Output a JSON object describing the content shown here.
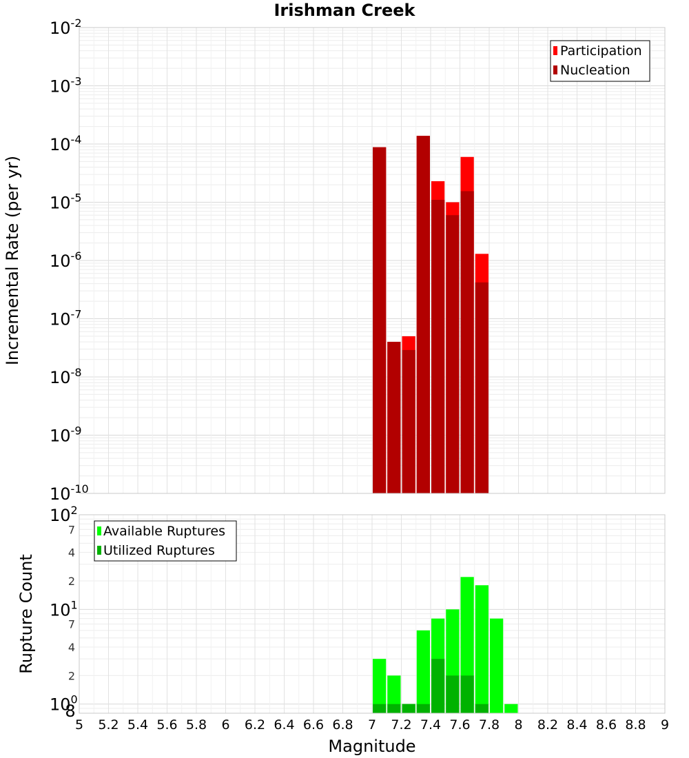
{
  "chart_data": [
    {
      "type": "bar",
      "title": "Irishman Creek",
      "xlabel": "",
      "ylabel": "Incremental Rate (per yr)",
      "xlim": [
        5,
        9
      ],
      "ylim": [
        1e-10,
        0.01
      ],
      "yscale": "log",
      "grid": true,
      "legend_position": "top-right",
      "y_ticks": [
        "10-2",
        "10-3",
        "10-4",
        "10-5",
        "10-6",
        "10-7",
        "10-8",
        "10-9",
        "10-10"
      ],
      "x": [
        7.05,
        7.15,
        7.25,
        7.35,
        7.45,
        7.55,
        7.65,
        7.75
      ],
      "series": [
        {
          "name": "Participation",
          "color": "#ff0000",
          "values": [
            8.8e-05,
            4e-08,
            5e-08,
            0.000138,
            2.3e-05,
            1e-05,
            6e-05,
            1.3e-06
          ]
        },
        {
          "name": "Nucleation",
          "color": "#b20000",
          "values": [
            8.8e-05,
            4e-08,
            2.9e-08,
            0.000138,
            1.1e-05,
            6e-06,
            1.55e-05,
            4.2e-07
          ]
        }
      ]
    },
    {
      "type": "bar",
      "xlabel": "Magnitude",
      "ylabel": "Rupture Count",
      "xlim": [
        5,
        9
      ],
      "ylim": [
        0.8,
        100
      ],
      "yscale": "log",
      "grid": true,
      "legend_position": "top-left",
      "x_ticks": [
        "5",
        "5.2",
        "5.4",
        "5.6",
        "5.8",
        "6",
        "6.2",
        "6.4",
        "6.6",
        "6.8",
        "7",
        "7.2",
        "7.4",
        "7.6",
        "7.8",
        "8",
        "8.2",
        "8.4",
        "8.6",
        "8.8",
        "9"
      ],
      "y_major_ticks": [
        {
          "base": "10",
          "exp": "2",
          "value": 100
        },
        {
          "base": "10",
          "exp": "1",
          "value": 10
        },
        {
          "base": "10",
          "exp": "0",
          "value": 1
        }
      ],
      "y_minor_ticks": [
        {
          "label": "7",
          "value": 70
        },
        {
          "label": "4",
          "value": 40
        },
        {
          "label": "2",
          "value": 20
        },
        {
          "label": "7",
          "value": 7
        },
        {
          "label": "4",
          "value": 4
        },
        {
          "label": "2",
          "value": 2
        },
        {
          "label": "8",
          "value": 0.8
        }
      ],
      "x": [
        7.05,
        7.15,
        7.25,
        7.35,
        7.45,
        7.55,
        7.65,
        7.75,
        7.85,
        7.95
      ],
      "series": [
        {
          "name": "Available Ruptures",
          "color": "#00ff00",
          "values": [
            3,
            2,
            1,
            6,
            8,
            10,
            22,
            18,
            8,
            1
          ]
        },
        {
          "name": "Utilized Ruptures",
          "color": "#00b200",
          "values": [
            1,
            1,
            1,
            1,
            3,
            2,
            2,
            1,
            0,
            0
          ]
        }
      ]
    }
  ]
}
